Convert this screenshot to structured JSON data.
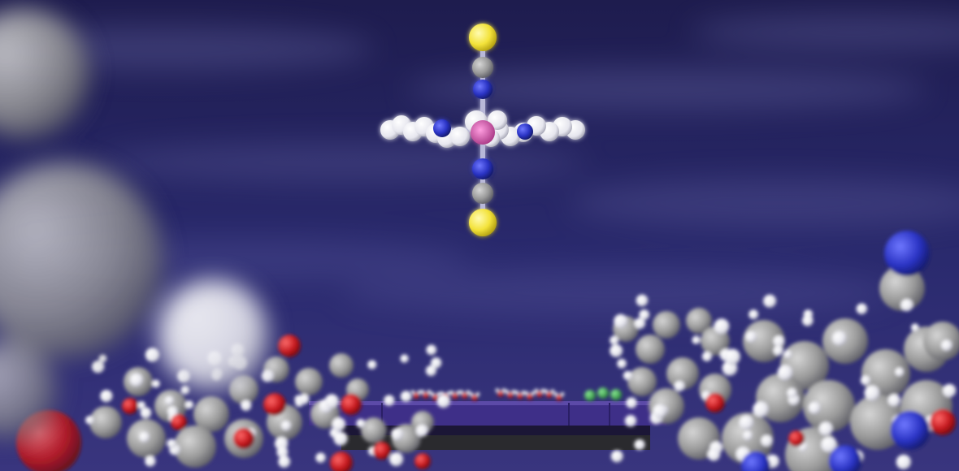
{
  "scene": {
    "subject": "molecular-render",
    "colors": {
      "background_top": "#1e1c4e",
      "background_mid": "#2a2a6e",
      "background_low": "#39357e",
      "carbon": "#9a9a9a",
      "hydrogen": "#ececf2",
      "nitrogen": "#2a33c4",
      "oxygen": "#c4161c",
      "sulfur": "#f3e23a",
      "metal_center": "#d44aa8",
      "chlorine": "#2fb045",
      "substrate": "#3f2f8a",
      "substrate_edge": "#5c4aa8"
    },
    "molecule": {
      "axial_ligands": [
        "S",
        "C",
        "N",
        "metal",
        "N",
        "C",
        "S"
      ],
      "equatorial_ligands": "pyridine rings"
    }
  }
}
